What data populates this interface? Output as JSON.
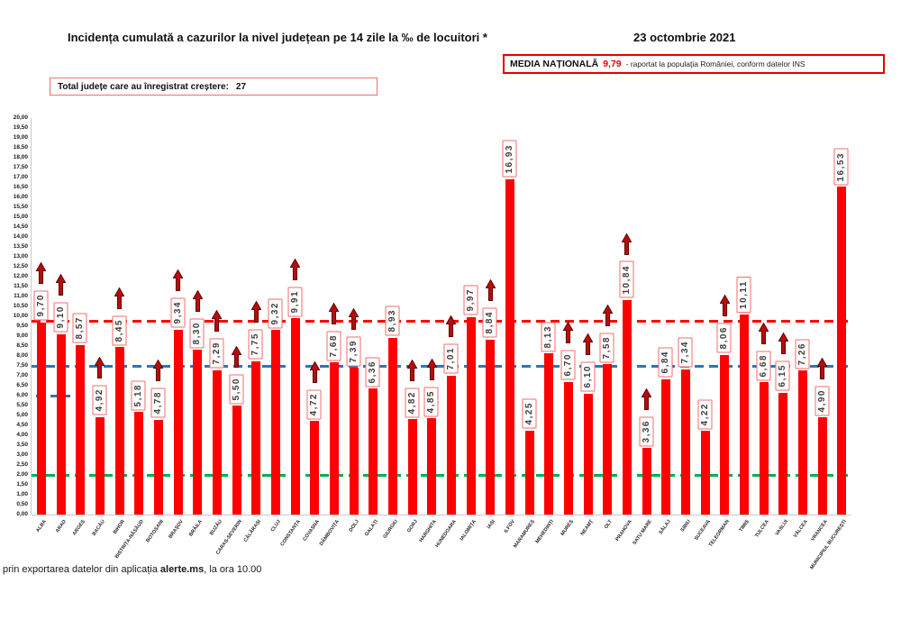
{
  "header": {
    "title": "Incidența cumulată a cazurilor la nivel județean pe 14 zile la ‰ de locuitori *",
    "date": "23 octombrie 2021"
  },
  "national_average": {
    "label": "MEDIA NAȚIONALĂ",
    "value": "9,79",
    "note": "-  raportat la populația României, conform datelor INS",
    "value_color": "#e30000"
  },
  "growth_box": {
    "label": "Total județe care au înregistrat creștere:",
    "count": "27"
  },
  "footer": {
    "prefix": "prin exportarea datelor din aplicația ",
    "app": "alerte.ms",
    "suffix": ", la ora 10.00"
  },
  "chart_data": {
    "type": "bar",
    "title": "Incidența cumulată a cazurilor la nivel județean pe 14 zile la ‰ de locuitori *",
    "categories": [
      "ALBA",
      "ARAD",
      "ARGEȘ",
      "BACĂU",
      "BIHOR",
      "BISTRIȚA-NĂSĂUD",
      "BOTOȘANI",
      "BRAȘOV",
      "BRĂILA",
      "BUZĂU",
      "CARAȘ-SEVERIN",
      "CĂLĂRAȘI",
      "CLUJ",
      "CONSTANȚA",
      "COVASNA",
      "DÂMBOVIȚA",
      "DOLJ",
      "GALAȚI",
      "GIURGIU",
      "GORJ",
      "HARGHITA",
      "HUNEDOARA",
      "IALOMIȚA",
      "IAȘI",
      "ILFOV",
      "MARAMUREȘ",
      "MEHEDINȚI",
      "MUREȘ",
      "NEAMȚ",
      "OLT",
      "PRAHOVA",
      "SATU MARE",
      "SĂLAJ",
      "SIBIU",
      "SUCEAVA",
      "TELEORMAN",
      "TIMIȘ",
      "TULCEA",
      "VASLUI",
      "VÂLCEA",
      "VRANCEA",
      "MUNICIPIUL BUCUREȘTI"
    ],
    "values": [
      9.7,
      9.1,
      8.57,
      4.92,
      8.45,
      5.18,
      4.78,
      9.34,
      8.3,
      7.29,
      5.5,
      7.75,
      9.32,
      9.91,
      4.72,
      7.68,
      7.39,
      6.36,
      8.93,
      4.82,
      4.85,
      7.01,
      9.97,
      8.84,
      16.93,
      4.25,
      8.13,
      6.7,
      6.1,
      7.58,
      10.84,
      3.36,
      6.84,
      7.34,
      4.22,
      8.06,
      10.11,
      6.68,
      6.15,
      7.26,
      4.9,
      16.53
    ],
    "labels": [
      "9,70",
      "9,10",
      "8,57",
      "4,92",
      "8,45",
      "5,18",
      "4,78",
      "9,34",
      "8,30",
      "7,29",
      "5,50",
      "7,75",
      "9,32",
      "9,91",
      "4,72",
      "7,68",
      "7,39",
      "6,36",
      "8,93",
      "4,82",
      "4,85",
      "7,01",
      "9,97",
      "8,84",
      "16,93",
      "4,25",
      "8,13",
      "6,70",
      "6,10",
      "7,58",
      "10,84",
      "3,36",
      "6,84",
      "7,34",
      "4,22",
      "8,06",
      "10,11",
      "6,68",
      "6,15",
      "7,26",
      "4,90",
      "16,53"
    ],
    "increase": [
      true,
      true,
      false,
      true,
      true,
      false,
      true,
      true,
      true,
      true,
      true,
      true,
      false,
      true,
      true,
      true,
      true,
      false,
      false,
      true,
      true,
      true,
      false,
      true,
      false,
      false,
      false,
      true,
      true,
      true,
      true,
      true,
      false,
      false,
      false,
      true,
      false,
      true,
      true,
      false,
      true,
      false
    ],
    "ylim": [
      0,
      20
    ],
    "ytick_step": 0.5,
    "grid": false,
    "legend": "none",
    "bar_color": "#ff0000",
    "arrow_color": "#b50d0d",
    "label_border_color": "#f26d6d",
    "reference_lines": [
      {
        "name": "media-nationala-line",
        "value": 9.79,
        "color": "#ff0000",
        "style": "dashed",
        "extent": "full"
      },
      {
        "name": "blue-threshold-line",
        "value": 7.5,
        "color": "#2e75b6",
        "style": "dashed",
        "extent": "full"
      },
      {
        "name": "green-threshold-line",
        "value": 2.0,
        "color": "#00b050",
        "style": "dashed",
        "extent": "full"
      },
      {
        "name": "blue-partial-mark",
        "value": 6.0,
        "color": "#2e75b6",
        "style": "dashed",
        "extent": "partial"
      }
    ]
  }
}
